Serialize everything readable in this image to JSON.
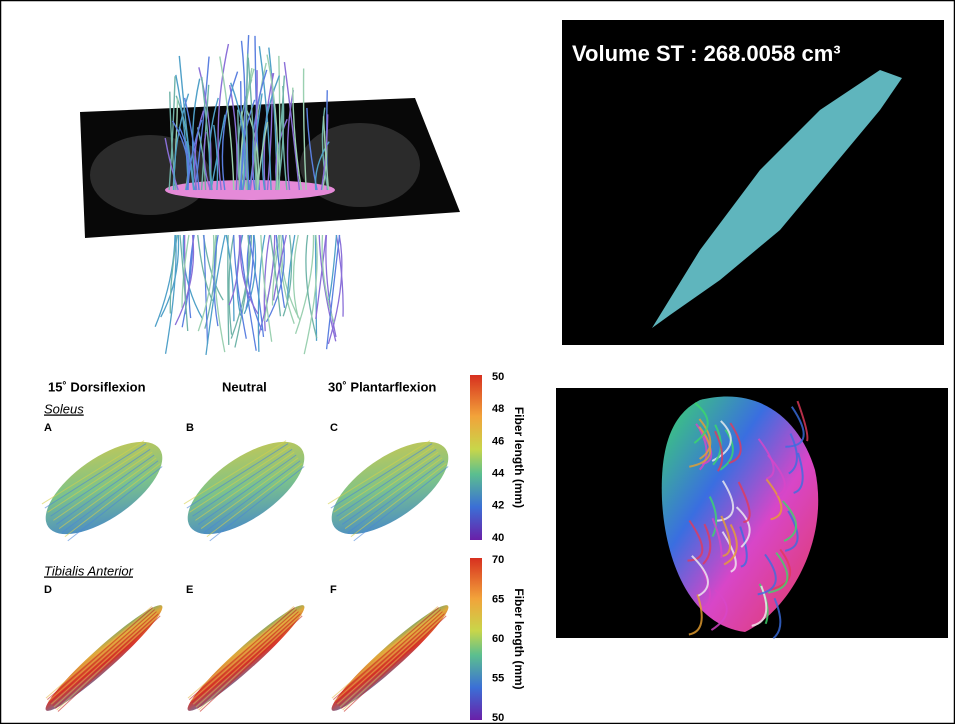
{
  "volume_panel": {
    "label": "Volume ST : 268.0058 cm³"
  },
  "fiber_figure": {
    "columns": [
      "15˚ Dorsiflexion",
      "Neutral",
      "30˚ Plantarflexion"
    ],
    "rows": [
      {
        "name": "Soleus",
        "panels": [
          "A",
          "B",
          "C"
        ],
        "colorbar": {
          "label": "Fiber length (mm)",
          "ticks": [
            50,
            48,
            46,
            44,
            42,
            40
          ]
        }
      },
      {
        "name": "Tibialis Anterior",
        "panels": [
          "D",
          "E",
          "F"
        ],
        "colorbar": {
          "label": "Fiber length (mm)",
          "ticks": [
            70,
            65,
            60,
            55,
            50
          ]
        }
      }
    ]
  }
}
